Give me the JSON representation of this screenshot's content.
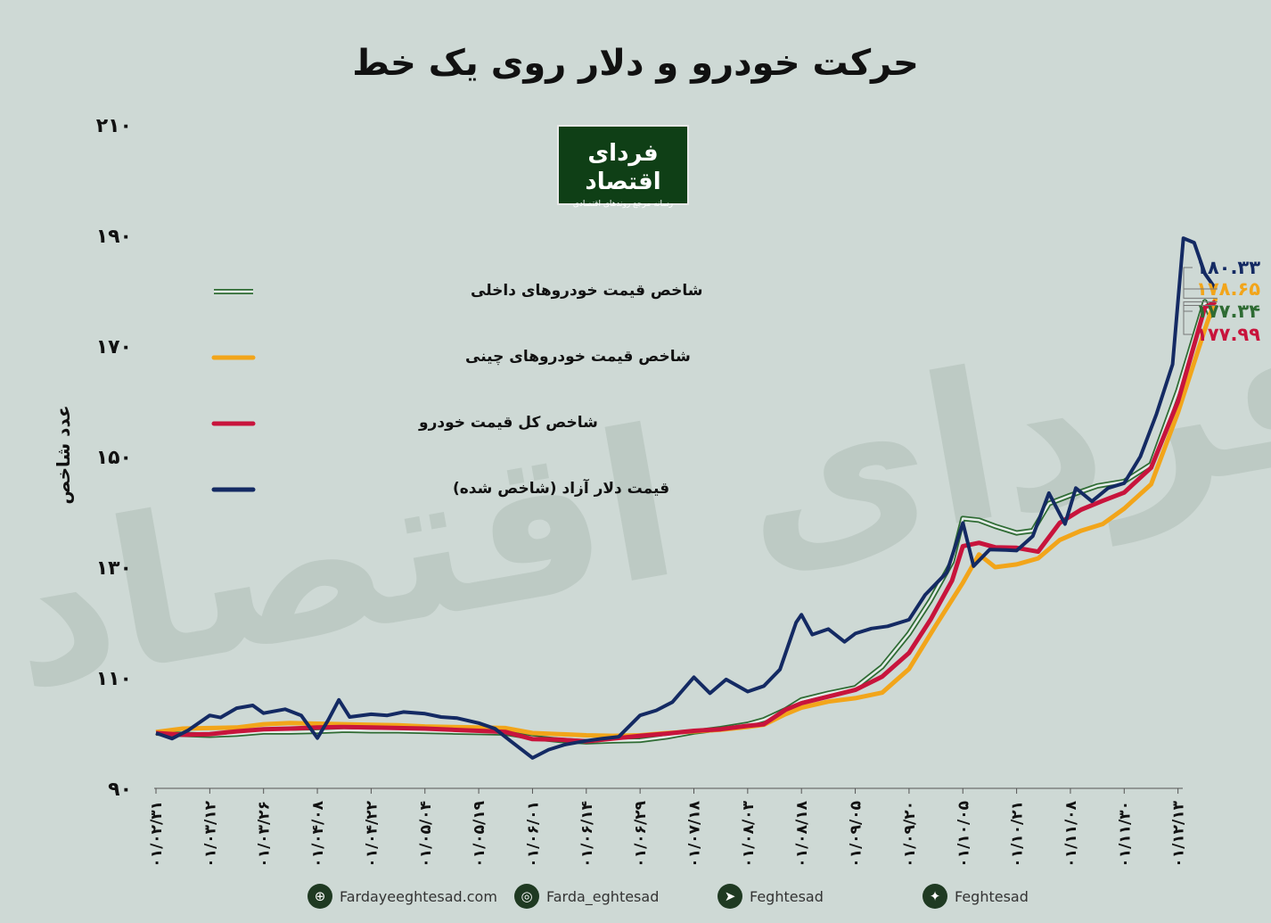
{
  "title": "حرکت خودرو و دلار روی یک خط",
  "logo": {
    "name": "فردای اقتصاد",
    "tagline": "رسانه مرجع روندهای اقتصادی"
  },
  "colors": {
    "background": "#ced9d5",
    "domestic": "#2e6b33",
    "chinese": "#f2a51a",
    "total": "#c8143c",
    "dollar": "#142a63"
  },
  "chart_data": {
    "type": "line",
    "ylabel": "عدد شاخص",
    "ylim": [
      90,
      210
    ],
    "yticks": [
      "۹۰",
      "۱۱۰",
      "۱۳۰",
      "۱۵۰",
      "۱۷۰",
      "۱۹۰",
      "۲۱۰"
    ],
    "x_labels": [
      "۰۱/۰۲/۳۱",
      "۰۱/۰۳/۱۲",
      "۰۱/۰۳/۲۶",
      "۰۱/۰۴/۰۸",
      "۰۱/۰۴/۲۲",
      "۰۱/۰۵/۰۴",
      "۰۱/۰۵/۱۹",
      "۰۱/۰۶/۰۱",
      "۰۱/۰۶/۱۴",
      "۰۱/۰۶/۲۹",
      "۰۱/۰۷/۱۸",
      "۰۱/۰۸/۰۳",
      "۰۱/۰۸/۱۸",
      "۰۱/۰۹/۰۵",
      "۰۱/۰۹/۲۰",
      "۰۱/۱۰/۰۵",
      "۰۱/۱۰/۲۱",
      "۰۱/۱۱/۰۸",
      "۰۱/۱۱/۳۰",
      "۰۱/۱۲/۱۳"
    ],
    "series": [
      {
        "name": "شاخص قیمت خودروهای داخلی",
        "end_label": "۱۷۷.۳۴",
        "points": [
          [
            0,
            100
          ],
          [
            0.4,
            99.8
          ],
          [
            1,
            99.6
          ],
          [
            1.5,
            99.8
          ],
          [
            2,
            100.2
          ],
          [
            2.5,
            100.2
          ],
          [
            3,
            100.3
          ],
          [
            3.5,
            100.5
          ],
          [
            4,
            100.4
          ],
          [
            4.5,
            100.4
          ],
          [
            5,
            100.3
          ],
          [
            5.5,
            100.2
          ],
          [
            6,
            100.1
          ],
          [
            6.5,
            100
          ],
          [
            7,
            99.2
          ],
          [
            7.5,
            98.7
          ],
          [
            8,
            98.4
          ],
          [
            8.5,
            98.6
          ],
          [
            9,
            98.7
          ],
          [
            9.5,
            99.3
          ],
          [
            10,
            100.2
          ],
          [
            10.5,
            100.8
          ],
          [
            11,
            101.6
          ],
          [
            11.3,
            102.4
          ],
          [
            11.7,
            104.2
          ],
          [
            12,
            106
          ],
          [
            12.5,
            107.2
          ],
          [
            13,
            108.2
          ],
          [
            13.5,
            112
          ],
          [
            14,
            118
          ],
          [
            14.4,
            124
          ],
          [
            14.8,
            131
          ],
          [
            15,
            138.8
          ],
          [
            15.3,
            138.5
          ],
          [
            15.6,
            137.4
          ],
          [
            16,
            136.2
          ],
          [
            16.3,
            136.6
          ],
          [
            16.6,
            141.5
          ],
          [
            17,
            143
          ],
          [
            17.5,
            144.7
          ],
          [
            18,
            145.5
          ],
          [
            18.5,
            148.6
          ],
          [
            19,
            162
          ],
          [
            19.5,
            178
          ],
          [
            19.6,
            175.5
          ],
          [
            19.7,
            177.34
          ]
        ]
      },
      {
        "name": "شاخص قیمت خودروهای چینی",
        "end_label": "۱۷۸.۶۵",
        "points": [
          [
            0,
            100.2
          ],
          [
            0.5,
            100.8
          ],
          [
            1,
            100.9
          ],
          [
            1.5,
            101
          ],
          [
            2,
            101.6
          ],
          [
            2.5,
            101.8
          ],
          [
            3,
            101.7
          ],
          [
            3.5,
            101.6
          ],
          [
            4,
            101.5
          ],
          [
            4.5,
            101.4
          ],
          [
            5,
            101.2
          ],
          [
            5.5,
            101.1
          ],
          [
            6,
            101
          ],
          [
            6.5,
            100.9
          ],
          [
            7,
            100
          ],
          [
            7.5,
            99.8
          ],
          [
            8,
            99.6
          ],
          [
            8.5,
            99.5
          ],
          [
            9,
            99.6
          ],
          [
            9.5,
            100
          ],
          [
            10,
            100.3
          ],
          [
            10.5,
            100.6
          ],
          [
            11,
            101.1
          ],
          [
            11.3,
            101.5
          ],
          [
            11.7,
            103.4
          ],
          [
            12,
            104.6
          ],
          [
            12.5,
            105.7
          ],
          [
            13,
            106.3
          ],
          [
            13.5,
            107.3
          ],
          [
            14,
            111.6
          ],
          [
            14.5,
            119.5
          ],
          [
            15,
            127.2
          ],
          [
            15.3,
            132.3
          ],
          [
            15.6,
            130
          ],
          [
            16,
            130.5
          ],
          [
            16.4,
            131.6
          ],
          [
            16.8,
            134.9
          ],
          [
            17.2,
            136.6
          ],
          [
            17.6,
            137.8
          ],
          [
            18,
            140.6
          ],
          [
            18.5,
            145
          ],
          [
            19,
            158
          ],
          [
            19.5,
            173
          ],
          [
            19.7,
            178.65
          ]
        ]
      },
      {
        "name": "شاخص کل قیمت خودرو",
        "end_label": "۱۷۷.۹۹",
        "points": [
          [
            0,
            100
          ],
          [
            0.5,
            99.7
          ],
          [
            1,
            99.8
          ],
          [
            1.5,
            100.3
          ],
          [
            2,
            100.7
          ],
          [
            2.5,
            100.8
          ],
          [
            3,
            101
          ],
          [
            3.5,
            101.1
          ],
          [
            4,
            101
          ],
          [
            4.5,
            100.9
          ],
          [
            5,
            100.8
          ],
          [
            5.5,
            100.6
          ],
          [
            6,
            100.4
          ],
          [
            6.5,
            100.2
          ],
          [
            7,
            98.9
          ],
          [
            7.5,
            98.8
          ],
          [
            8,
            98.5
          ],
          [
            8.5,
            99
          ],
          [
            9,
            99.5
          ],
          [
            9.5,
            99.9
          ],
          [
            10,
            100.4
          ],
          [
            10.5,
            100.7
          ],
          [
            11,
            101.3
          ],
          [
            11.3,
            101.6
          ],
          [
            11.7,
            104.2
          ],
          [
            12,
            105.4
          ],
          [
            12.5,
            106.6
          ],
          [
            13,
            107.8
          ],
          [
            13.5,
            110.2
          ],
          [
            14,
            114.5
          ],
          [
            14.4,
            120.5
          ],
          [
            14.8,
            127.6
          ],
          [
            15,
            133.8
          ],
          [
            15.3,
            134.4
          ],
          [
            15.6,
            133.6
          ],
          [
            16,
            133.5
          ],
          [
            16.4,
            132.8
          ],
          [
            16.8,
            138
          ],
          [
            17.2,
            140.4
          ],
          [
            17.6,
            142
          ],
          [
            18,
            143.5
          ],
          [
            18.5,
            148
          ],
          [
            19,
            160
          ],
          [
            19.5,
            177
          ],
          [
            19.7,
            177.99
          ]
        ]
      },
      {
        "name": "قیمت دلار آزاد (شاخص شده)",
        "end_label": "۱۸۰.۳۳",
        "points": [
          [
            0,
            100
          ],
          [
            0.3,
            99
          ],
          [
            0.6,
            100.5
          ],
          [
            1,
            103.2
          ],
          [
            1.2,
            102.8
          ],
          [
            1.5,
            104.5
          ],
          [
            1.8,
            105
          ],
          [
            2,
            103.6
          ],
          [
            2.4,
            104.3
          ],
          [
            2.7,
            103.2
          ],
          [
            3,
            99.1
          ],
          [
            3.2,
            102.3
          ],
          [
            3.4,
            106
          ],
          [
            3.6,
            102.9
          ],
          [
            4,
            103.4
          ],
          [
            4.3,
            103.2
          ],
          [
            4.6,
            103.8
          ],
          [
            5,
            103.5
          ],
          [
            5.3,
            102.9
          ],
          [
            5.6,
            102.7
          ],
          [
            6,
            101.8
          ],
          [
            6.3,
            100.8
          ],
          [
            6.6,
            98.5
          ],
          [
            7,
            95.5
          ],
          [
            7.3,
            97
          ],
          [
            7.6,
            97.9
          ],
          [
            8,
            98.6
          ],
          [
            8.3,
            99
          ],
          [
            8.6,
            99.3
          ],
          [
            9,
            103.2
          ],
          [
            9.3,
            104.1
          ],
          [
            9.6,
            105.6
          ],
          [
            10,
            110.1
          ],
          [
            10.3,
            107.2
          ],
          [
            10.6,
            109.7
          ],
          [
            11,
            107.5
          ],
          [
            11.3,
            108.5
          ],
          [
            11.6,
            111.5
          ],
          [
            11.9,
            120
          ],
          [
            12,
            121.4
          ],
          [
            12.2,
            117.8
          ],
          [
            12.5,
            118.8
          ],
          [
            12.8,
            116.5
          ],
          [
            13,
            118
          ],
          [
            13.3,
            118.9
          ],
          [
            13.6,
            119.3
          ],
          [
            14,
            120.5
          ],
          [
            14.3,
            125
          ],
          [
            14.7,
            129
          ],
          [
            15,
            138
          ],
          [
            15.2,
            130.2
          ],
          [
            15.5,
            133.2
          ],
          [
            15.8,
            133.1
          ],
          [
            16,
            133
          ],
          [
            16.3,
            135.6
          ],
          [
            16.6,
            143.4
          ],
          [
            16.9,
            137.8
          ],
          [
            17.1,
            144.3
          ],
          [
            17.4,
            141.9
          ],
          [
            17.7,
            144.3
          ],
          [
            18,
            145.2
          ],
          [
            18.3,
            150
          ],
          [
            18.6,
            157.7
          ],
          [
            18.9,
            166.7
          ],
          [
            19.1,
            189.5
          ],
          [
            19.3,
            188.7
          ],
          [
            19.5,
            183.1
          ],
          [
            19.7,
            180.33
          ]
        ]
      }
    ]
  },
  "footer": [
    {
      "icon": "globe-icon",
      "glyph": "⊕",
      "text": "Fardayeeghtesad.com"
    },
    {
      "icon": "instagram-icon",
      "glyph": "◎",
      "text": "Farda_eghtesad"
    },
    {
      "icon": "telegram-icon",
      "glyph": "➤",
      "text": "Feghtesad"
    },
    {
      "icon": "twitter-icon",
      "glyph": "✦",
      "text": "Feghtesad"
    }
  ]
}
